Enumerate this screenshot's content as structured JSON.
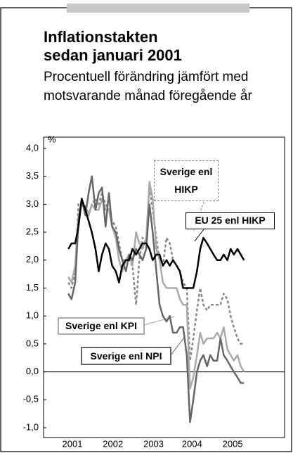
{
  "chart_data": {
    "type": "line",
    "title": "Inflationstakten sedan januari 2001",
    "subtitle": "Procentuell förändring jämfört med motsvarande månad föregående år",
    "y_label": "%",
    "x": [
      2001,
      2001.08,
      2001.17,
      2001.25,
      2001.33,
      2001.42,
      2001.5,
      2001.58,
      2001.67,
      2001.75,
      2001.83,
      2001.92,
      2002,
      2002.08,
      2002.17,
      2002.25,
      2002.33,
      2002.42,
      2002.5,
      2002.58,
      2002.67,
      2002.75,
      2002.83,
      2002.92,
      2003,
      2003.08,
      2003.17,
      2003.25,
      2003.33,
      2003.42,
      2003.5,
      2003.58,
      2003.67,
      2003.75,
      2003.83,
      2003.92,
      2004,
      2004.08,
      2004.17,
      2004.25,
      2004.33,
      2004.42,
      2004.5,
      2004.58,
      2004.67,
      2004.75,
      2004.83,
      2004.92,
      2005,
      2005.08,
      2005.17,
      2005.25,
      2005.33
    ],
    "series": [
      {
        "name": "EU 25 enl HIKP",
        "color": "#000000",
        "dashed": false,
        "values": [
          2.2,
          2.3,
          2.3,
          2.6,
          3.1,
          2.9,
          2.7,
          2.5,
          2.2,
          1.8,
          2.1,
          2.3,
          2.2,
          1.9,
          1.8,
          1.6,
          1.9,
          2.0,
          2.0,
          2.2,
          2.1,
          2.2,
          2.3,
          2.3,
          2.2,
          2.0,
          2.1,
          2.1,
          1.9,
          2.0,
          1.9,
          2.0,
          1.9,
          1.8,
          1.5,
          1.5,
          1.5,
          1.5,
          1.8,
          2.2,
          2.4,
          2.3,
          2.2,
          2.1,
          2.0,
          2.0,
          2.1,
          2.0,
          2.2,
          2.1,
          2.2,
          2.1,
          2.0
        ]
      },
      {
        "name": "Sverige enl HIKP",
        "color": "#888888",
        "dashed": true,
        "values": [
          1.6,
          1.5,
          1.8,
          3.0,
          3.0,
          3.0,
          2.8,
          3.0,
          3.1,
          3.0,
          3.2,
          3.0,
          2.9,
          2.7,
          2.6,
          2.3,
          2.0,
          2.0,
          2.0,
          1.9,
          1.2,
          2.0,
          2.4,
          2.3,
          3.3,
          2.9,
          2.4,
          2.0,
          1.9,
          2.4,
          2.3,
          2.0,
          1.9,
          1.8,
          1.6,
          1.5,
          0.2,
          0.6,
          1.1,
          1.5,
          1.2,
          1.1,
          1.2,
          1.2,
          1.2,
          1.2,
          1.4,
          1.3,
          1.0,
          0.8,
          0.6,
          0.5,
          0.5
        ]
      },
      {
        "name": "Sverige enl KPI",
        "color": "#aaaaaa",
        "dashed": false,
        "values": [
          1.7,
          1.6,
          1.9,
          2.8,
          3.0,
          2.9,
          2.8,
          3.0,
          2.9,
          2.9,
          3.1,
          2.9,
          2.9,
          2.6,
          2.4,
          2.0,
          1.8,
          2.0,
          2.1,
          1.9,
          2.5,
          2.3,
          2.2,
          2.4,
          3.4,
          3.1,
          2.2,
          2.0,
          1.6,
          1.5,
          1.5,
          1.5,
          1.5,
          1.3,
          1.2,
          1.2,
          -0.3,
          -0.1,
          0.3,
          0.7,
          0.5,
          0.6,
          0.6,
          0.6,
          0.7,
          0.6,
          0.8,
          0.4,
          0.3,
          0.2,
          0.3,
          0.1,
          0.0
        ]
      },
      {
        "name": "Sverige enl NPI",
        "color": "#666666",
        "dashed": false,
        "values": [
          1.4,
          1.3,
          1.6,
          2.7,
          3.1,
          2.8,
          3.2,
          3.5,
          2.9,
          3.2,
          3.3,
          2.6,
          3.2,
          2.6,
          2.5,
          2.2,
          2.0,
          1.8,
          2.1,
          2.0,
          2.2,
          2.1,
          2.0,
          2.2,
          3.0,
          2.5,
          1.8,
          1.2,
          1.0,
          0.9,
          1.0,
          0.7,
          0.7,
          0.8,
          0.8,
          0.3,
          -0.9,
          -0.5,
          0.0,
          0.2,
          0.3,
          0.1,
          0.3,
          0.2,
          0.2,
          0.6,
          0.3,
          0.2,
          0.1,
          0.0,
          -0.1,
          -0.2,
          -0.2
        ]
      }
    ],
    "xlim": [
      2000.39,
      2006.33
    ],
    "xticks": [
      {
        "value": 2001.1,
        "label": "2001"
      },
      {
        "value": 2002.1,
        "label": "2002"
      },
      {
        "value": 2003.1,
        "label": "2003"
      },
      {
        "value": 2004.05,
        "label": "2004"
      },
      {
        "value": 2005.05,
        "label": "2005"
      }
    ],
    "ylim": [
      -1,
      4
    ],
    "yticks": [
      {
        "value": 4,
        "label": "4,0"
      },
      {
        "value": 3.5,
        "label": "3,5"
      },
      {
        "value": 3,
        "label": "3,0"
      },
      {
        "value": 2.5,
        "label": "2,5"
      },
      {
        "value": 2,
        "label": "2,0"
      },
      {
        "value": 1.5,
        "label": "1,5"
      },
      {
        "value": 1,
        "label": "1,0"
      },
      {
        "value": 0.5,
        "label": "0,5"
      },
      {
        "value": 0,
        "label": "0,0"
      },
      {
        "value": -0.5,
        "label": "-0,5"
      },
      {
        "value": -1,
        "label": "-1,0"
      }
    ]
  }
}
